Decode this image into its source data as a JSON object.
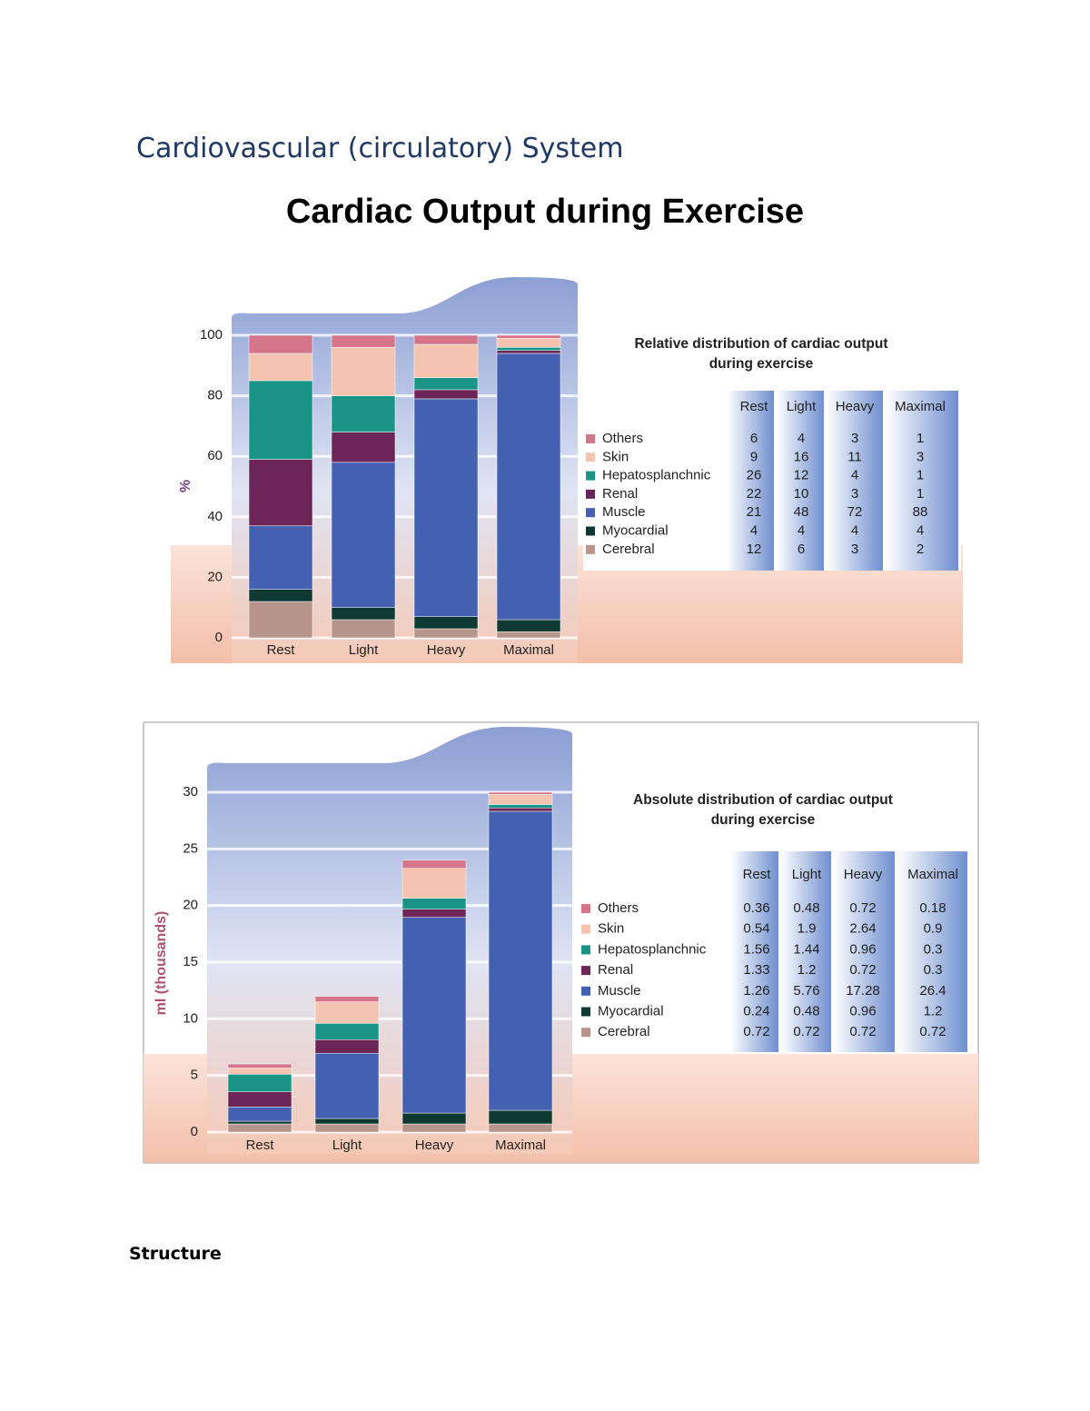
{
  "document": {
    "heading": "Cardiovascular (circulatory) System",
    "title": "Cardiac Output during Exercise",
    "section": "Structure"
  },
  "chart_data": [
    {
      "type": "bar",
      "stacked": true,
      "title": "Relative distribution of cardiac output during exercise",
      "ylabel": "%",
      "categories": [
        "Rest",
        "Light",
        "Heavy",
        "Maximal"
      ],
      "series": [
        {
          "name": "Others",
          "color": "#d4758a",
          "values": [
            6,
            4,
            3,
            1
          ]
        },
        {
          "name": "Skin",
          "color": "#f4c4b0",
          "values": [
            9,
            16,
            11,
            3
          ]
        },
        {
          "name": "Hepatosplanchnic",
          "color": "#1a9486",
          "values": [
            26,
            12,
            4,
            1
          ]
        },
        {
          "name": "Renal",
          "color": "#6b2556",
          "values": [
            22,
            10,
            3,
            1
          ]
        },
        {
          "name": "Muscle",
          "color": "#4460b0",
          "values": [
            21,
            48,
            72,
            88
          ]
        },
        {
          "name": "Myocardial",
          "color": "#0f3a34",
          "values": [
            4,
            4,
            4,
            4
          ]
        },
        {
          "name": "Cerebral",
          "color": "#b8958a",
          "values": [
            12,
            6,
            3,
            2
          ]
        }
      ],
      "ylim": [
        0,
        100
      ],
      "yticks": [
        0,
        20,
        40,
        60,
        80,
        100
      ],
      "grid": true
    },
    {
      "type": "bar",
      "stacked": true,
      "title": "Absolute distribution of cardiac output during exercise",
      "ylabel": "ml (thousands)",
      "categories": [
        "Rest",
        "Light",
        "Heavy",
        "Maximal"
      ],
      "series": [
        {
          "name": "Others",
          "color": "#d4758a",
          "values": [
            0.36,
            0.48,
            0.72,
            0.18
          ]
        },
        {
          "name": "Skin",
          "color": "#f4c4b0",
          "values": [
            0.54,
            1.9,
            2.64,
            0.9
          ]
        },
        {
          "name": "Hepatosplanchnic",
          "color": "#1a9486",
          "values": [
            1.56,
            1.44,
            0.96,
            0.3
          ]
        },
        {
          "name": "Renal",
          "color": "#6b2556",
          "values": [
            1.33,
            1.2,
            0.72,
            0.3
          ]
        },
        {
          "name": "Muscle",
          "color": "#4460b0",
          "values": [
            1.26,
            5.76,
            17.28,
            26.4
          ]
        },
        {
          "name": "Myocardial",
          "color": "#0f3a34",
          "values": [
            0.24,
            0.48,
            0.96,
            1.2
          ]
        },
        {
          "name": "Cerebral",
          "color": "#b8958a",
          "values": [
            0.72,
            0.72,
            0.72,
            0.72
          ]
        }
      ],
      "ylim": [
        0,
        30
      ],
      "yticks": [
        0,
        5,
        10,
        15,
        20,
        25,
        30
      ],
      "grid": true
    }
  ]
}
